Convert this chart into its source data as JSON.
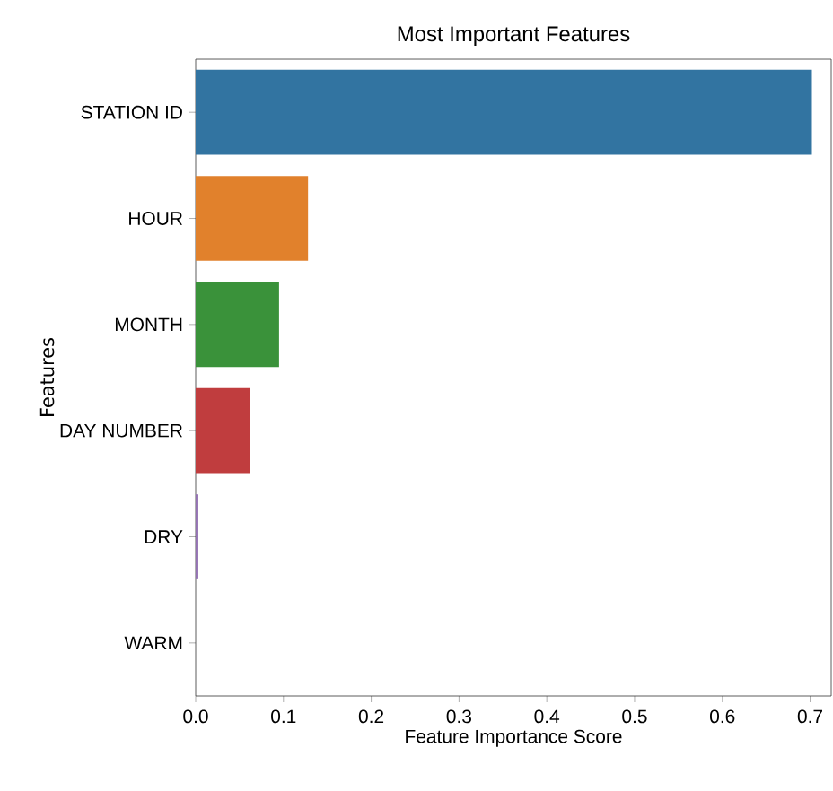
{
  "chart_data": {
    "type": "bar",
    "orientation": "horizontal",
    "title": "Most Important Features",
    "xlabel": "Feature Importance Score",
    "ylabel": "Features",
    "categories": [
      "STATION ID",
      "HOUR",
      "MONTH",
      "DAY NUMBER",
      "DRY",
      "WARM"
    ],
    "values": [
      0.702,
      0.128,
      0.095,
      0.062,
      0.003,
      0
    ],
    "colors": [
      "#3274a1",
      "#e1812c",
      "#3a923a",
      "#c03d3e",
      "#9372b2",
      "#845b53"
    ],
    "xlim": [
      0,
      0.724
    ],
    "xticks": [
      {
        "value": 0,
        "label": "0.0"
      },
      {
        "value": 0.1,
        "label": "0.1"
      },
      {
        "value": 0.2,
        "label": "0.2"
      },
      {
        "value": 0.3,
        "label": "0.3"
      },
      {
        "value": 0.4,
        "label": "0.4"
      },
      {
        "value": 0.5,
        "label": "0.5"
      },
      {
        "value": 0.6,
        "label": "0.6"
      },
      {
        "value": 0.7,
        "label": "0.7"
      }
    ],
    "grid": false
  }
}
